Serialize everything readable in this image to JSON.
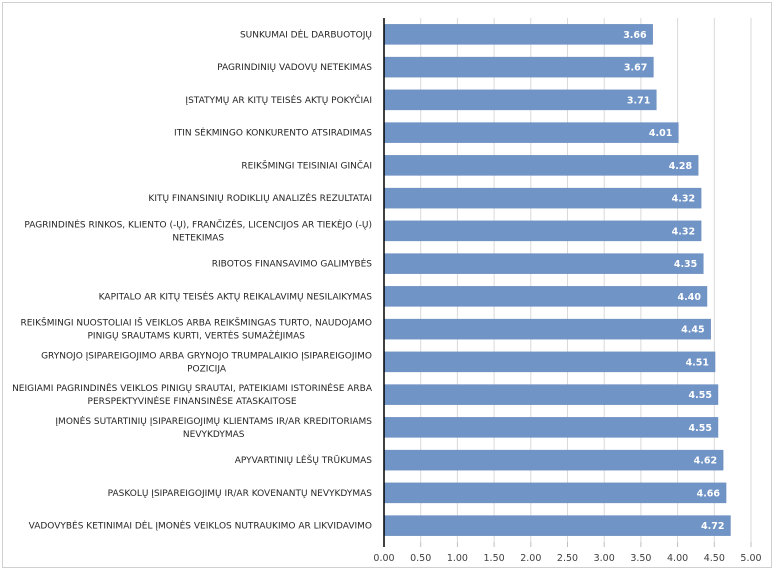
{
  "chart_data": {
    "type": "bar",
    "orientation": "horizontal",
    "categories": [
      [
        "SUNKUMAI DĖL DARBUOTOJŲ"
      ],
      [
        "PAGRINDINIŲ VADOVŲ NETEKIMAS"
      ],
      [
        "ĮSTATYMŲ AR KITŲ TEISĖS AKTŲ POKYČIAI"
      ],
      [
        "ITIN SĖKMINGO KONKURENTO ATSIRADIMAS"
      ],
      [
        "REIKŠMINGI TEISINIAI GINČAI"
      ],
      [
        "KITŲ FINANSINIŲ RODIKLIŲ ANALIZĖS REZULTATAI"
      ],
      [
        "PAGRINDINĖS RINKOS, KLIENTO (-Ų), FRANČIZĖS, LICENCIJOS AR TIEKĖJO (-Ų)",
        "NETEKIMAS"
      ],
      [
        "RIBOTOS FINANSAVIMO GALIMYBĖS"
      ],
      [
        "KAPITALO AR KITŲ TEISĖS AKTŲ REIKALAVIMŲ NESILAIKYMAS"
      ],
      [
        "REIKŠMINGI NUOSTOLIAI IŠ VEIKLOS ARBA REIKŠMINGAS TURTO, NAUDOJAMO",
        "PINIGŲ SRAUTAMS KURTI, VERTĖS SUMAŽĖJIMAS"
      ],
      [
        "GRYNOJO ĮSIPAREIGOJIMO ARBA GRYNOJO TRUMPALAIKIO ĮSIPAREIGOJIMO",
        "POZICIJA"
      ],
      [
        "NEIGIAMI PAGRINDINĖS VEIKLOS PINIGŲ SRAUTAI, PATEIKIAMI ISTORINĖSE ARBA",
        "PERSPEKTYVINĖSE FINANSINĖSE ATASKAITOSE"
      ],
      [
        "ĮMONĖS SUTARTINIŲ ĮSIPAREIGOJIMŲ KLIENTAMS IR/AR KREDITORIAMS",
        "NEVYKDYMAS"
      ],
      [
        "APYVARTINIŲ LĖŠŲ TRŪKUMAS"
      ],
      [
        "PASKOLŲ ĮSIPAREIGOJIMŲ IR/AR KOVENANTŲ NEVYKDYMAS"
      ],
      [
        "VADOVYBĖS KETINIMAI DĖL ĮMONĖS VEIKLOS NUTRAUKIMO AR LIKVIDAVIMO"
      ]
    ],
    "values": [
      3.66,
      3.67,
      3.71,
      4.01,
      4.28,
      4.32,
      4.32,
      4.35,
      4.4,
      4.45,
      4.51,
      4.55,
      4.55,
      4.62,
      4.66,
      4.72
    ],
    "data_labels": [
      "3.66",
      "3.67",
      "3.71",
      "4.01",
      "4.28",
      "4.32",
      "4.32",
      "4.35",
      "4.40",
      "4.45",
      "4.51",
      "4.55",
      "4.55",
      "4.62",
      "4.66",
      "4.72"
    ],
    "xlim": [
      0,
      5
    ],
    "x_ticks": [
      "0.00",
      "0.50",
      "1.00",
      "1.50",
      "2.00",
      "2.50",
      "3.00",
      "3.50",
      "4.00",
      "4.50",
      "5.00"
    ],
    "grid": "vertical",
    "legend": "none",
    "bar_color": "#7094c6",
    "title": "",
    "xlabel": "",
    "ylabel": ""
  }
}
